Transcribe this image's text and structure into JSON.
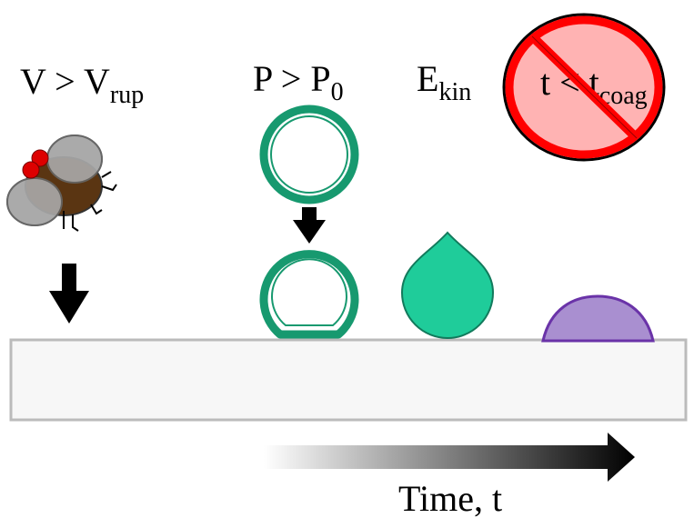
{
  "labels": [
    {
      "text": "V > V",
      "sub": "rup"
    },
    {
      "text": "P > P",
      "sub": "0"
    },
    {
      "text": "E",
      "sub": "kin"
    },
    {
      "text": "t < t",
      "sub": "coag"
    }
  ],
  "axis_label": "Time, t"
}
